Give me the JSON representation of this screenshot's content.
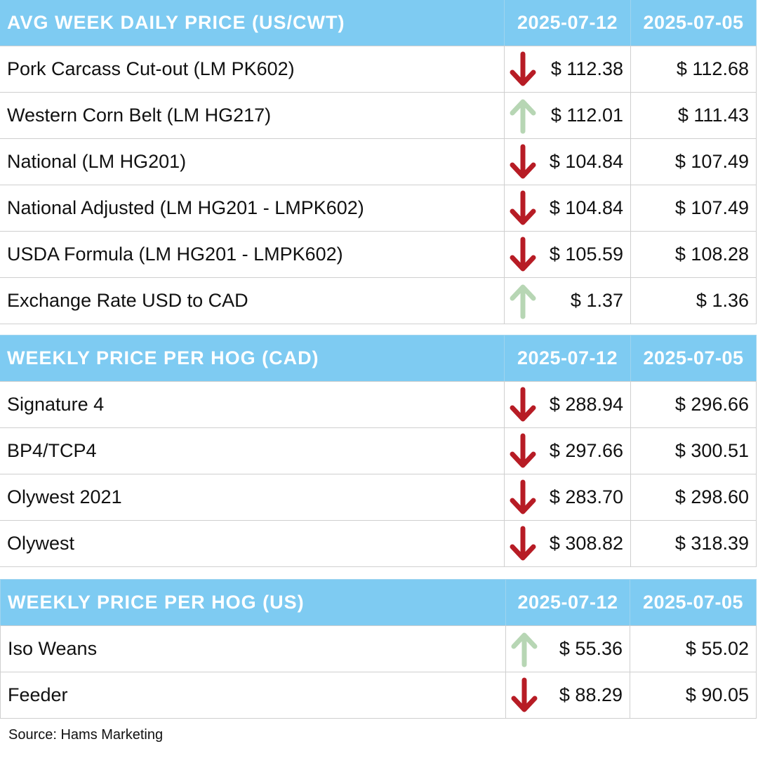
{
  "colors": {
    "header_bg": "#7ecbf2",
    "down_arrow": "#b71c25",
    "up_arrow": "#b7d6b4"
  },
  "tables": [
    {
      "header": {
        "title": "AVG WEEK DAILY PRICE (US/CWT)",
        "date1": "2025-07-12",
        "date2": "2025-07-05"
      },
      "rows": [
        {
          "label": "Pork Carcass Cut-out (LM PK602)",
          "trend": "down",
          "current": "$ 112.38",
          "previous": "$ 112.68"
        },
        {
          "label": "Western Corn Belt (LM HG217)",
          "trend": "up",
          "current": "$ 112.01",
          "previous": "$ 111.43"
        },
        {
          "label": "National (LM HG201)",
          "trend": "down",
          "current": "$ 104.84",
          "previous": "$ 107.49"
        },
        {
          "label": "National Adjusted (LM HG201 - LMPK602)",
          "trend": "down",
          "current": "$ 104.84",
          "previous": "$ 107.49"
        },
        {
          "label": "USDA Formula (LM HG201 - LMPK602)",
          "trend": "down",
          "current": "$ 105.59",
          "previous": "$ 108.28"
        },
        {
          "label": "Exchange Rate USD to CAD",
          "trend": "up",
          "current": "$ 1.37",
          "previous": "$ 1.36"
        }
      ]
    },
    {
      "header": {
        "title": "WEEKLY PRICE PER HOG (CAD)",
        "date1": "2025-07-12",
        "date2": "2025-07-05"
      },
      "rows": [
        {
          "label": "Signature 4",
          "trend": "down",
          "current": "$ 288.94",
          "previous": "$ 296.66"
        },
        {
          "label": "BP4/TCP4",
          "trend": "down",
          "current": "$ 297.66",
          "previous": "$ 300.51"
        },
        {
          "label": "Olywest 2021",
          "trend": "down",
          "current": "$ 283.70",
          "previous": "$ 298.60"
        },
        {
          "label": "Olywest",
          "trend": "down",
          "current": "$ 308.82",
          "previous": "$ 318.39"
        }
      ]
    },
    {
      "header": {
        "title": "WEEKLY PRICE PER HOG (US)",
        "date1": "2025-07-12",
        "date2": "2025-07-05"
      },
      "rows": [
        {
          "label": "Iso Weans",
          "trend": "up",
          "current": "$ 55.36",
          "previous": "$ 55.02"
        },
        {
          "label": "Feeder",
          "trend": "down",
          "current": "$ 88.29",
          "previous": "$ 90.05"
        }
      ]
    }
  ],
  "source": "Source: Hams Marketing"
}
